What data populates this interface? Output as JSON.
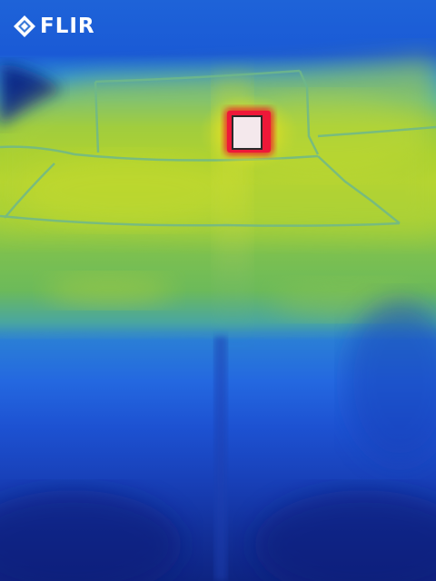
{
  "brand": {
    "logo_text": "FLIR",
    "logo_icon": "flir-diamond-logo-icon",
    "logo_color": "#ffffff"
  },
  "palette": {
    "hot_core": "#f4e8ec",
    "hot_edge": "#e8102a",
    "warm": "#f0c020",
    "mid": "#a8d030",
    "cool": "#2468e0",
    "cold": "#0e2482"
  }
}
